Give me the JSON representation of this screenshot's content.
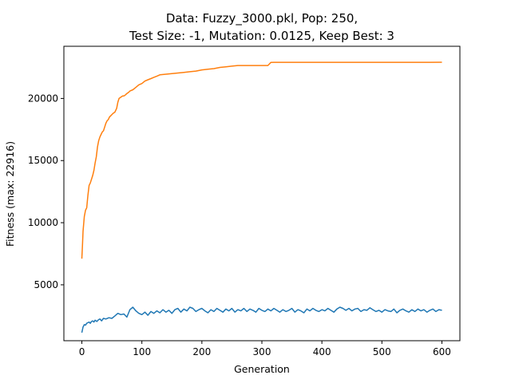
{
  "chart_data": {
    "type": "line",
    "title": [
      "Data: Fuzzy_3000.pkl, Pop: 250,",
      "Test Size: -1, Mutation: 0.0125, Keep Best: 3"
    ],
    "xlabel": "Generation",
    "ylabel": "Fitness (max: 22916)",
    "xlim": [
      -30,
      630
    ],
    "ylim": [
      500,
      24200
    ],
    "xticks": [
      0,
      100,
      200,
      300,
      400,
      500,
      600
    ],
    "yticks": [
      5000,
      10000,
      15000,
      20000
    ],
    "grid": false,
    "legend": "none",
    "series": [
      {
        "color": "#ff7f0e",
        "x": [
          0,
          1,
          2,
          3,
          4,
          6,
          8,
          10,
          12,
          14,
          16,
          18,
          20,
          22,
          24,
          26,
          28,
          30,
          32,
          34,
          36,
          38,
          40,
          42,
          44,
          46,
          48,
          50,
          52,
          55,
          58,
          60,
          62,
          65,
          68,
          70,
          73,
          75,
          78,
          80,
          85,
          90,
          95,
          100,
          105,
          110,
          115,
          120,
          125,
          130,
          140,
          150,
          160,
          170,
          180,
          190,
          200,
          210,
          220,
          230,
          240,
          250,
          260,
          270,
          280,
          290,
          300,
          310,
          315,
          320,
          340,
          360,
          380,
          400,
          420,
          440,
          460,
          480,
          500,
          520,
          540,
          560,
          580,
          600
        ],
        "y": [
          7100,
          8200,
          9300,
          9900,
          10500,
          11000,
          11200,
          12200,
          13000,
          13200,
          13500,
          13800,
          14200,
          14800,
          15300,
          16100,
          16600,
          16900,
          17100,
          17300,
          17400,
          17700,
          18000,
          18200,
          18300,
          18500,
          18600,
          18700,
          18800,
          18900,
          19200,
          19700,
          20000,
          20100,
          20200,
          20200,
          20300,
          20400,
          20500,
          20600,
          20700,
          20900,
          21100,
          21200,
          21400,
          21500,
          21600,
          21700,
          21800,
          21900,
          21950,
          22000,
          22050,
          22100,
          22150,
          22200,
          22300,
          22350,
          22400,
          22500,
          22550,
          22600,
          22650,
          22650,
          22650,
          22650,
          22650,
          22650,
          22900,
          22910,
          22910,
          22910,
          22910,
          22910,
          22910,
          22910,
          22910,
          22910,
          22910,
          22910,
          22910,
          22910,
          22910,
          22916
        ]
      },
      {
        "color": "#1f77b4",
        "x": [
          0,
          2,
          4,
          6,
          8,
          10,
          12,
          14,
          16,
          18,
          20,
          22,
          25,
          28,
          30,
          33,
          36,
          40,
          45,
          50,
          55,
          60,
          65,
          70,
          75,
          80,
          85,
          90,
          95,
          100,
          105,
          110,
          115,
          120,
          125,
          130,
          135,
          140,
          145,
          150,
          155,
          160,
          165,
          170,
          175,
          180,
          185,
          190,
          195,
          200,
          205,
          210,
          215,
          220,
          225,
          230,
          235,
          240,
          245,
          250,
          255,
          260,
          265,
          270,
          275,
          280,
          285,
          290,
          295,
          300,
          305,
          310,
          315,
          320,
          325,
          330,
          335,
          340,
          345,
          350,
          355,
          360,
          365,
          370,
          375,
          380,
          385,
          390,
          395,
          400,
          405,
          410,
          415,
          420,
          425,
          430,
          435,
          440,
          445,
          450,
          455,
          460,
          465,
          470,
          475,
          480,
          485,
          490,
          495,
          500,
          505,
          510,
          515,
          520,
          525,
          530,
          535,
          540,
          545,
          550,
          555,
          560,
          565,
          570,
          575,
          580,
          585,
          590,
          595,
          600
        ],
        "y": [
          1150,
          1600,
          1800,
          1750,
          1900,
          1950,
          2000,
          1900,
          2050,
          2100,
          2000,
          2150,
          2050,
          2200,
          2250,
          2100,
          2300,
          2250,
          2350,
          2300,
          2500,
          2700,
          2600,
          2650,
          2400,
          3000,
          3200,
          2900,
          2700,
          2600,
          2800,
          2550,
          2850,
          2700,
          2900,
          2750,
          3000,
          2800,
          2950,
          2700,
          3000,
          3100,
          2800,
          3050,
          2900,
          3200,
          3100,
          2850,
          3000,
          3100,
          2900,
          2750,
          3000,
          2850,
          3100,
          2950,
          2800,
          3050,
          2900,
          3100,
          2800,
          3000,
          2900,
          3100,
          2850,
          3050,
          2950,
          2800,
          3100,
          2950,
          2850,
          3050,
          2900,
          3100,
          2950,
          2800,
          3000,
          2850,
          2950,
          3100,
          2800,
          3000,
          2900,
          2750,
          3050,
          2900,
          3100,
          2950,
          2850,
          3000,
          2900,
          3100,
          2950,
          2800,
          3050,
          3200,
          3100,
          2950,
          3100,
          2900,
          3050,
          3100,
          2850,
          3000,
          2950,
          3150,
          3000,
          2850,
          2950,
          2800,
          3000,
          2900,
          2850,
          3050,
          2750,
          2950,
          3050,
          2900,
          2800,
          3000,
          2850,
          3050,
          2900,
          3000,
          2800,
          2950,
          3050,
          2850,
          3000,
          2950
        ]
      }
    ]
  }
}
